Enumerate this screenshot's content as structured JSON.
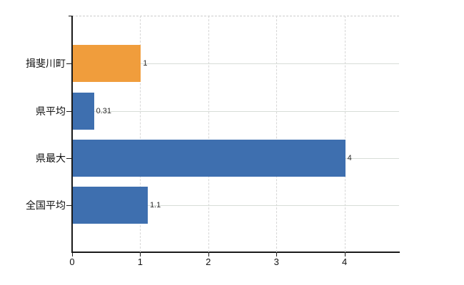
{
  "chart_data": {
    "type": "bar",
    "orientation": "horizontal",
    "title": "",
    "xlabel": "",
    "ylabel": "",
    "categories": [
      "揖斐川町",
      "県平均",
      "県最大",
      "全国平均"
    ],
    "values": [
      1,
      0.31,
      4,
      1.1
    ],
    "value_labels": [
      "1",
      "0.31",
      "4",
      "1.1"
    ],
    "bar_colors": [
      "#f09d3c",
      "#3e6faf",
      "#3e6faf",
      "#3e6faf"
    ],
    "x_ticks": [
      0,
      1,
      2,
      3,
      4
    ],
    "x_tick_labels": [
      "0",
      "1",
      "2",
      "3",
      "4"
    ],
    "xlim": [
      0,
      4.8
    ],
    "grid": true,
    "legend": false,
    "colors": {
      "highlight_bar": "#f09d3c",
      "default_bar": "#3e6faf",
      "axis": "#1a1a1a",
      "gridline": "#d7ddd7",
      "background": "#ffffff"
    }
  }
}
